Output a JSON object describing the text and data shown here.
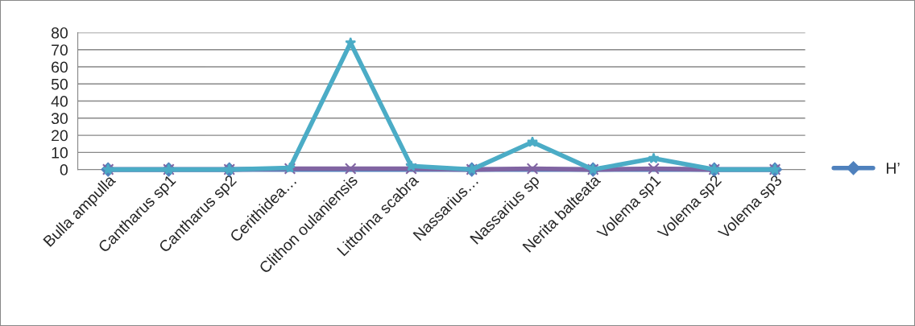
{
  "chart_data": {
    "type": "line",
    "categories": [
      "Bulla ampulla",
      "Cantharus sp1",
      "Cantharus sp2",
      "Cerithidea…",
      "Clithon oulaniensis",
      "Littorina scabra",
      "Nassarius…",
      "Nassarius sp",
      "Nerita balteata",
      "Volema sp1",
      "Volema sp2",
      "Volema sp3"
    ],
    "series": [
      {
        "name": "H’",
        "color": "#4f81bd",
        "marker": "diamond",
        "values": [
          0,
          0,
          0,
          null,
          null,
          null,
          0,
          null,
          0,
          null,
          0,
          0
        ]
      },
      {
        "color": "#8064a2",
        "marker": "cross",
        "values": [
          0,
          0,
          0,
          0.5,
          0.5,
          0.5,
          0,
          0.5,
          0,
          0.5,
          0,
          0
        ]
      },
      {
        "color": "#4bacc6",
        "marker": "star",
        "values": [
          0,
          0,
          0,
          1,
          74,
          2,
          0,
          16,
          0,
          6.5,
          0,
          0
        ]
      }
    ],
    "ylim": [
      0,
      80
    ],
    "yticks": [
      0,
      10,
      20,
      30,
      40,
      50,
      60,
      70,
      80
    ],
    "grid": "y",
    "legend": "right"
  }
}
